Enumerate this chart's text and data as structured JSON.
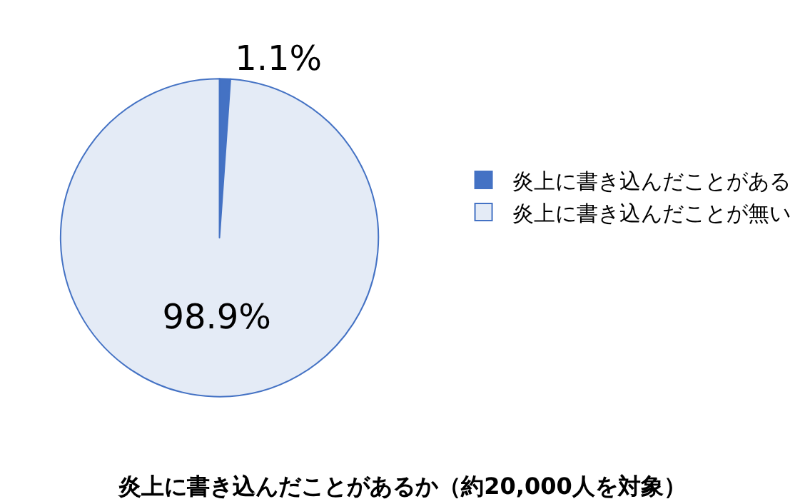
{
  "chart_data": {
    "type": "pie",
    "title": "炎上に書き込んだことがあるか（約20,000人を対象）",
    "categories": [
      "炎上に書き込んだことがある",
      "炎上に書き込んだことが無い"
    ],
    "values": [
      1.1,
      98.9
    ],
    "colors": [
      "#4472c4",
      "#e4ebf6"
    ],
    "value_labels": [
      "1.1%",
      "98.9%"
    ],
    "legend": "right"
  }
}
